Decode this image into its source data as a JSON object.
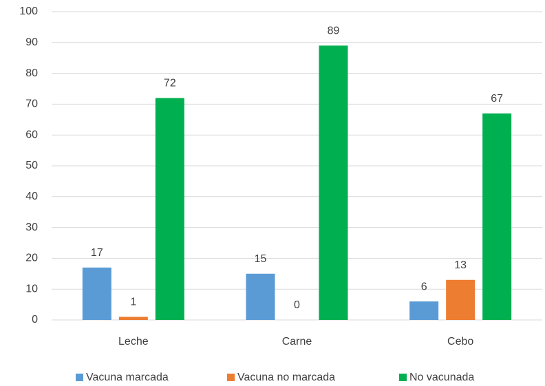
{
  "chart_data": {
    "type": "bar",
    "categories": [
      "Leche",
      "Carne",
      "Cebo"
    ],
    "series": [
      {
        "name": "Vacuna marcada",
        "color": "#5b9bd5",
        "values": [
          17,
          15,
          6
        ]
      },
      {
        "name": "Vacuna no marcada",
        "color": "#ed7d31",
        "values": [
          1,
          0,
          13
        ]
      },
      {
        "name": "No vacunada",
        "color": "#00b050",
        "values": [
          72,
          89,
          67
        ]
      }
    ],
    "ylim": [
      0,
      100
    ],
    "yticks": [
      0,
      10,
      20,
      30,
      40,
      50,
      60,
      70,
      80,
      90,
      100
    ],
    "grid": true,
    "legend": "bottom"
  }
}
